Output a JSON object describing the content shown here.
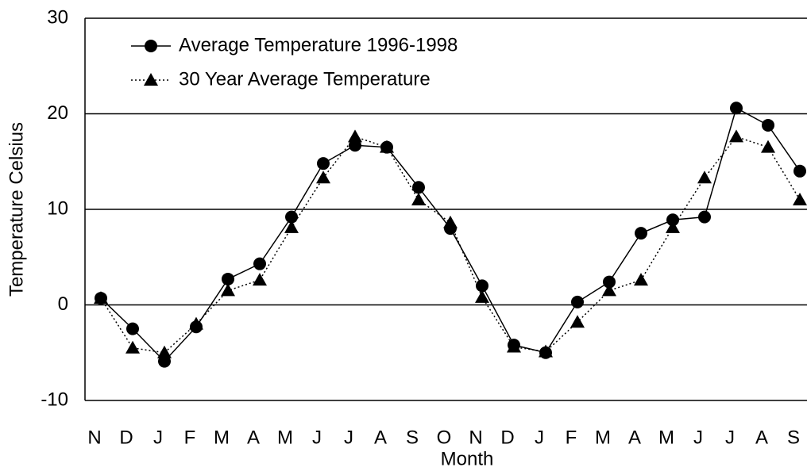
{
  "chart_data": {
    "type": "line",
    "xlabel": "Month",
    "ylabel": "Temperature Celsius",
    "categories": [
      "N",
      "D",
      "J",
      "F",
      "M",
      "A",
      "M",
      "J",
      "J",
      "A",
      "S",
      "O",
      "N",
      "D",
      "J",
      "F",
      "M",
      "A",
      "M",
      "J",
      "J",
      "A",
      "S"
    ],
    "series": [
      {
        "name": "Average Temperature 1996-1998",
        "color": "#000000",
        "marker": "circle",
        "dash": false,
        "values": [
          0.7,
          -2.5,
          -5.9,
          -2.3,
          2.7,
          4.3,
          9.2,
          14.8,
          16.7,
          16.5,
          12.3,
          8.0,
          2.0,
          -4.2,
          -5.0,
          0.3,
          2.4,
          7.5,
          8.9,
          9.2,
          20.6,
          18.8,
          14.0
        ]
      },
      {
        "name": "30 Year Average Temperature",
        "color": "#000000",
        "marker": "triangle",
        "dash": true,
        "values": [
          0.7,
          -4.5,
          -5.0,
          -2.0,
          1.5,
          2.6,
          8.1,
          13.3,
          17.6,
          16.5,
          11.0,
          8.6,
          0.8,
          -4.4,
          -4.9,
          -1.8,
          1.5,
          2.6,
          8.1,
          13.3,
          17.6,
          16.5,
          11.0
        ]
      }
    ],
    "ylim": [
      -10,
      30
    ],
    "yticks": [
      -10,
      0,
      10,
      20,
      30
    ],
    "grid": true,
    "legend": "top-left"
  }
}
